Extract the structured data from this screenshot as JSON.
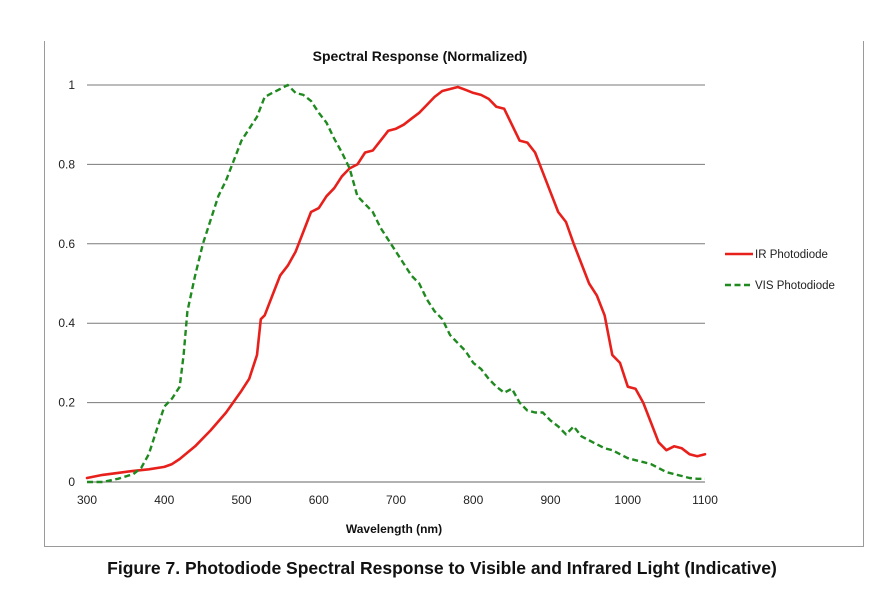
{
  "figure": {
    "caption": "Figure 7. Photodiode Spectral Response to Visible and Infrared Light (Indicative)"
  },
  "chart_data": {
    "type": "line",
    "title": "Spectral Response (Normalized)",
    "xlabel": "Wavelength (nm)",
    "ylabel": "",
    "xlim": [
      300,
      1100
    ],
    "ylim": [
      0,
      1
    ],
    "xticks": [
      "300",
      "400",
      "500",
      "600",
      "700",
      "800",
      "900",
      "1000",
      "1100"
    ],
    "yticks": [
      "0",
      "0.2",
      "0.4",
      "0.6",
      "0.8",
      "1"
    ],
    "grid": "horizontal",
    "legend": "right",
    "series": [
      {
        "name": "IR Photodiode",
        "color": "#e8201c",
        "style": "solid",
        "x": [
          300,
          320,
          340,
          360,
          380,
          400,
          410,
          420,
          440,
          460,
          480,
          500,
          510,
          520,
          525,
          530,
          540,
          550,
          560,
          570,
          580,
          590,
          600,
          610,
          620,
          630,
          640,
          650,
          660,
          670,
          680,
          690,
          700,
          710,
          720,
          730,
          740,
          750,
          760,
          770,
          780,
          790,
          800,
          810,
          820,
          830,
          840,
          850,
          860,
          870,
          880,
          890,
          900,
          910,
          920,
          930,
          940,
          950,
          960,
          970,
          980,
          990,
          1000,
          1010,
          1020,
          1030,
          1040,
          1050,
          1060,
          1070,
          1080,
          1090,
          1100
        ],
        "values": [
          0.01,
          0.018,
          0.023,
          0.028,
          0.032,
          0.038,
          0.045,
          0.058,
          0.09,
          0.13,
          0.175,
          0.23,
          0.26,
          0.32,
          0.41,
          0.42,
          0.47,
          0.52,
          0.545,
          0.58,
          0.63,
          0.68,
          0.69,
          0.72,
          0.74,
          0.77,
          0.79,
          0.8,
          0.83,
          0.835,
          0.86,
          0.885,
          0.89,
          0.9,
          0.915,
          0.93,
          0.95,
          0.97,
          0.985,
          0.99,
          0.995,
          0.988,
          0.98,
          0.975,
          0.965,
          0.945,
          0.94,
          0.9,
          0.86,
          0.855,
          0.83,
          0.78,
          0.73,
          0.68,
          0.655,
          0.6,
          0.55,
          0.5,
          0.47,
          0.42,
          0.32,
          0.3,
          0.24,
          0.235,
          0.2,
          0.15,
          0.1,
          0.08,
          0.09,
          0.085,
          0.07,
          0.065,
          0.07
        ]
      },
      {
        "name": "VIS Photodiode",
        "color": "#1f8a1f",
        "style": "dashed",
        "x": [
          300,
          320,
          340,
          360,
          370,
          380,
          390,
          400,
          410,
          420,
          425,
          430,
          440,
          450,
          460,
          470,
          480,
          490,
          500,
          510,
          520,
          530,
          540,
          550,
          560,
          570,
          580,
          590,
          600,
          610,
          620,
          630,
          640,
          650,
          660,
          670,
          680,
          690,
          700,
          710,
          720,
          730,
          740,
          750,
          760,
          770,
          780,
          790,
          800,
          810,
          820,
          830,
          840,
          850,
          860,
          870,
          880,
          890,
          900,
          910,
          920,
          930,
          940,
          950,
          960,
          970,
          980,
          990,
          1000,
          1010,
          1020,
          1030,
          1040,
          1050,
          1060,
          1070,
          1080,
          1090,
          1100
        ],
        "values": [
          0,
          0,
          0.008,
          0.02,
          0.035,
          0.07,
          0.13,
          0.19,
          0.21,
          0.24,
          0.32,
          0.43,
          0.52,
          0.6,
          0.66,
          0.72,
          0.76,
          0.81,
          0.86,
          0.89,
          0.92,
          0.97,
          0.98,
          0.99,
          1.0,
          0.98,
          0.975,
          0.96,
          0.93,
          0.905,
          0.865,
          0.83,
          0.79,
          0.72,
          0.7,
          0.68,
          0.64,
          0.61,
          0.58,
          0.55,
          0.52,
          0.5,
          0.46,
          0.43,
          0.41,
          0.37,
          0.35,
          0.33,
          0.3,
          0.285,
          0.26,
          0.24,
          0.225,
          0.235,
          0.2,
          0.18,
          0.175,
          0.175,
          0.155,
          0.14,
          0.12,
          0.14,
          0.115,
          0.105,
          0.095,
          0.085,
          0.08,
          0.07,
          0.06,
          0.055,
          0.05,
          0.045,
          0.035,
          0.025,
          0.02,
          0.015,
          0.01,
          0.008,
          0.008
        ]
      }
    ]
  }
}
